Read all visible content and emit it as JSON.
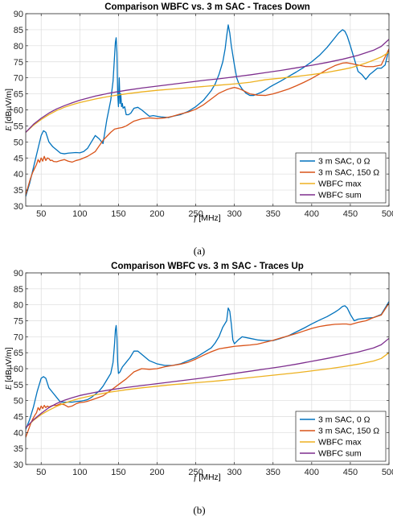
{
  "chart_data": [
    {
      "type": "line",
      "title": "Comparison WBFC vs. 3 m SAC - Traces Down",
      "caption": "(a)",
      "ylabel_main": "E",
      "ylabel_unit": "[dBµV/m]",
      "xlabel_main": "f",
      "xlabel_unit": "[MHz]",
      "xlim": [
        30,
        500
      ],
      "ylim": [
        30,
        90
      ],
      "xticks": [
        50,
        100,
        150,
        200,
        250,
        300,
        350,
        400,
        450,
        500
      ],
      "yticks": [
        30,
        35,
        40,
        45,
        50,
        55,
        60,
        65,
        70,
        75,
        80,
        85,
        90
      ],
      "grid": true,
      "legend_position": "bottom-right",
      "series": [
        {
          "name": "3 m SAC, 0 Ω",
          "color": "#0072BD",
          "x": [
            30,
            35,
            40,
            45,
            50,
            53,
            56,
            60,
            65,
            70,
            75,
            80,
            85,
            90,
            95,
            100,
            105,
            110,
            115,
            120,
            125,
            130,
            135,
            140,
            143,
            145,
            146,
            147,
            148,
            149,
            150,
            151,
            152,
            153,
            154,
            155,
            156,
            158,
            160,
            163,
            166,
            170,
            175,
            180,
            185,
            190,
            195,
            200,
            205,
            210,
            215,
            220,
            230,
            240,
            250,
            260,
            270,
            275,
            280,
            285,
            288,
            290,
            292,
            294,
            296,
            298,
            300,
            303,
            306,
            310,
            315,
            320,
            325,
            330,
            335,
            340,
            345,
            350,
            360,
            370,
            380,
            390,
            400,
            410,
            420,
            430,
            435,
            440,
            443,
            446,
            450,
            455,
            460,
            465,
            470,
            475,
            480,
            485,
            490,
            495,
            500
          ],
          "y": [
            33,
            37,
            42,
            47,
            52,
            53.5,
            53,
            50,
            48.5,
            47.5,
            46.5,
            46.3,
            46.5,
            46.6,
            46.7,
            46.6,
            47,
            48,
            50,
            52,
            51,
            49.5,
            57,
            63,
            69,
            77,
            81,
            82.5,
            78,
            65,
            61,
            70,
            62,
            65,
            61,
            62,
            60.5,
            61,
            58.5,
            58.5,
            59,
            60.5,
            60.8,
            60,
            59,
            58,
            58.2,
            58,
            57.8,
            57.7,
            57.6,
            58,
            58.5,
            59.5,
            61,
            63,
            66,
            68,
            71,
            75,
            79,
            83,
            86.5,
            84,
            80,
            77,
            74,
            70,
            68,
            66.5,
            65.2,
            64.5,
            64.5,
            65,
            65.5,
            66.2,
            67,
            67.7,
            69,
            70.4,
            71.8,
            73.3,
            75,
            77,
            79.5,
            82.5,
            84,
            85,
            84.5,
            83,
            80,
            76,
            72,
            71,
            69.5,
            71,
            72,
            73,
            73,
            74,
            79
          ]
        },
        {
          "name": "3 m SAC, 150 Ω",
          "color": "#D95319",
          "x": [
            30,
            33,
            36,
            39,
            42,
            44,
            46,
            48,
            50,
            52,
            54,
            56,
            58,
            60,
            62,
            64,
            66,
            70,
            75,
            80,
            85,
            90,
            95,
            100,
            110,
            120,
            130,
            140,
            145,
            150,
            155,
            160,
            170,
            180,
            190,
            200,
            210,
            220,
            230,
            240,
            250,
            260,
            270,
            280,
            290,
            295,
            300,
            305,
            310,
            315,
            320,
            330,
            340,
            350,
            360,
            370,
            380,
            390,
            400,
            410,
            420,
            430,
            440,
            445,
            450,
            460,
            470,
            480,
            490,
            500
          ],
          "y": [
            33.5,
            36,
            38.5,
            40.5,
            42,
            43,
            44.5,
            43.6,
            45,
            44,
            45.5,
            44.2,
            45,
            44.8,
            44.2,
            44.3,
            43.9,
            43.8,
            44.2,
            44.5,
            44,
            43.7,
            44.2,
            44.5,
            45.5,
            47,
            50.5,
            53,
            54,
            54.3,
            54.5,
            55,
            56.5,
            57.2,
            57.5,
            57.3,
            57.5,
            58,
            58.7,
            59.3,
            60.2,
            61.6,
            63.4,
            65.2,
            66.3,
            66.7,
            67,
            66.7,
            66.2,
            65.6,
            65,
            64.6,
            64.5,
            65,
            65.7,
            66.5,
            67.5,
            68.6,
            69.8,
            71.2,
            72.6,
            73.8,
            74.6,
            74.7,
            74.5,
            74,
            73.5,
            73.5,
            74,
            79
          ]
        },
        {
          "name": "WBFC max",
          "color": "#EDB120",
          "x": [
            30,
            40,
            50,
            60,
            70,
            80,
            90,
            100,
            120,
            140,
            160,
            180,
            200,
            220,
            240,
            260,
            280,
            300,
            320,
            330,
            340,
            360,
            380,
            400,
            420,
            440,
            450,
            460,
            470,
            480,
            490,
            500
          ],
          "y": [
            53,
            55.2,
            57,
            58.5,
            59.8,
            60.8,
            61.6,
            62.3,
            63.4,
            64.3,
            65,
            65.6,
            66.1,
            66.5,
            66.9,
            67.3,
            67.7,
            68.1,
            68.6,
            69,
            69.4,
            69.9,
            70.4,
            71,
            71.7,
            72.6,
            73.1,
            73.8,
            74.6,
            75.5,
            76.5,
            78
          ]
        },
        {
          "name": "WBFC sum",
          "color": "#7E2F8E",
          "x": [
            30,
            40,
            50,
            60,
            70,
            80,
            90,
            100,
            120,
            140,
            160,
            180,
            200,
            220,
            240,
            260,
            280,
            300,
            320,
            340,
            360,
            380,
            400,
            420,
            440,
            460,
            480,
            490,
            500
          ],
          "y": [
            53,
            55.5,
            57.4,
            59,
            60.3,
            61.3,
            62.2,
            63,
            64.3,
            65.3,
            66.1,
            66.8,
            67.4,
            68,
            68.6,
            69.2,
            69.7,
            70.3,
            70.9,
            71.6,
            72.3,
            73.1,
            73.9,
            74.8,
            75.8,
            77,
            78.6,
            79.8,
            82
          ]
        }
      ]
    },
    {
      "type": "line",
      "title": "Comparison WBFC vs. 3 m SAC - Traces Up",
      "caption": "(b)",
      "ylabel_main": "E",
      "ylabel_unit": "[dBµV/m]",
      "xlabel_main": "f",
      "xlabel_unit": "[MHz]",
      "xlim": [
        30,
        500
      ],
      "ylim": [
        30,
        90
      ],
      "xticks": [
        50,
        100,
        150,
        200,
        250,
        300,
        350,
        400,
        450,
        500
      ],
      "yticks": [
        30,
        35,
        40,
        45,
        50,
        55,
        60,
        65,
        70,
        75,
        80,
        85,
        90
      ],
      "grid": true,
      "legend_position": "bottom-right",
      "series": [
        {
          "name": "3 m SAC, 0 Ω",
          "color": "#0072BD",
          "x": [
            30,
            35,
            40,
            45,
            50,
            53,
            56,
            60,
            65,
            70,
            75,
            80,
            85,
            90,
            95,
            100,
            105,
            110,
            115,
            120,
            125,
            130,
            135,
            140,
            143,
            145,
            146,
            147,
            148,
            149,
            150,
            152,
            155,
            160,
            165,
            170,
            175,
            180,
            185,
            190,
            200,
            210,
            220,
            230,
            240,
            250,
            260,
            270,
            275,
            280,
            285,
            290,
            292,
            294,
            296,
            298,
            300,
            305,
            310,
            320,
            330,
            340,
            350,
            360,
            370,
            380,
            390,
            400,
            410,
            420,
            430,
            435,
            440,
            443,
            446,
            450,
            455,
            460,
            470,
            480,
            490,
            500
          ],
          "y": [
            41,
            44,
            48,
            53,
            57,
            57.5,
            57,
            54,
            52.5,
            51,
            49.5,
            49.5,
            49.5,
            49.5,
            49.7,
            49.8,
            50,
            50.3,
            51,
            52,
            53,
            54.5,
            56.5,
            58.5,
            62,
            68,
            72,
            73.5,
            70,
            62,
            58.5,
            59,
            60.5,
            62,
            63.5,
            65.5,
            65.5,
            64.5,
            63.5,
            62.5,
            61.5,
            61,
            61,
            61.5,
            62.5,
            63.5,
            65,
            66.5,
            68,
            70,
            73,
            75,
            79,
            78,
            74,
            69,
            67.8,
            69,
            70,
            69.5,
            69,
            68.8,
            68.8,
            69.5,
            70.3,
            71.5,
            72.7,
            74,
            75.2,
            76.3,
            77.7,
            78.5,
            79.5,
            79.7,
            79,
            77,
            75,
            75.5,
            75.8,
            76,
            77,
            81
          ]
        },
        {
          "name": "3 m SAC, 150 Ω",
          "color": "#D95319",
          "x": [
            30,
            33,
            36,
            39,
            42,
            44,
            46,
            48,
            50,
            52,
            54,
            56,
            58,
            60,
            62,
            65,
            70,
            75,
            80,
            85,
            90,
            95,
            100,
            105,
            110,
            120,
            130,
            140,
            150,
            160,
            170,
            180,
            190,
            200,
            210,
            220,
            230,
            240,
            250,
            260,
            270,
            280,
            290,
            300,
            310,
            320,
            330,
            340,
            350,
            360,
            370,
            380,
            390,
            400,
            410,
            420,
            430,
            440,
            445,
            450,
            460,
            470,
            480,
            490,
            500
          ],
          "y": [
            38.5,
            40.5,
            42.5,
            44.2,
            45.5,
            46.2,
            47.8,
            47,
            48.3,
            47.5,
            48.5,
            47.8,
            48.3,
            48,
            48.2,
            48.5,
            48.5,
            49,
            48.7,
            48,
            48.3,
            49,
            49.4,
            49.5,
            49.8,
            50.6,
            51.5,
            53.2,
            55,
            56.8,
            59,
            60,
            59.8,
            60,
            60.6,
            61,
            61.4,
            62,
            63,
            64.2,
            65.3,
            66.2,
            66.6,
            67,
            67.2,
            67.4,
            67.7,
            68.3,
            68.9,
            69.6,
            70.3,
            71,
            71.8,
            72.6,
            73.2,
            73.6,
            73.9,
            74,
            74,
            73.8,
            74.5,
            75,
            76,
            76.8,
            80.5
          ]
        },
        {
          "name": "WBFC max",
          "color": "#EDB120",
          "x": [
            30,
            40,
            50,
            60,
            70,
            80,
            90,
            100,
            120,
            140,
            160,
            180,
            200,
            220,
            240,
            260,
            280,
            300,
            320,
            340,
            360,
            380,
            400,
            420,
            440,
            460,
            480,
            490,
            500
          ],
          "y": [
            41.5,
            43.8,
            45.6,
            47,
            48.2,
            49.2,
            50,
            50.7,
            51.8,
            52.7,
            53.4,
            54,
            54.5,
            55,
            55.4,
            55.8,
            56.2,
            56.7,
            57.2,
            57.7,
            58.2,
            58.7,
            59.3,
            59.9,
            60.6,
            61.4,
            62.4,
            63.2,
            65
          ]
        },
        {
          "name": "WBFC sum",
          "color": "#7E2F8E",
          "x": [
            30,
            40,
            50,
            60,
            70,
            80,
            90,
            100,
            120,
            140,
            160,
            180,
            200,
            220,
            240,
            260,
            280,
            300,
            320,
            340,
            360,
            380,
            400,
            420,
            440,
            460,
            480,
            490,
            500
          ],
          "y": [
            41.5,
            44,
            46,
            47.8,
            49.1,
            50.1,
            50.9,
            51.6,
            52.6,
            53.4,
            54.1,
            54.7,
            55.3,
            55.9,
            56.5,
            57.1,
            57.8,
            58.5,
            59.2,
            59.9,
            60.6,
            61.4,
            62.3,
            63.2,
            64.2,
            65.2,
            66.5,
            67.5,
            69.5
          ]
        }
      ]
    }
  ]
}
